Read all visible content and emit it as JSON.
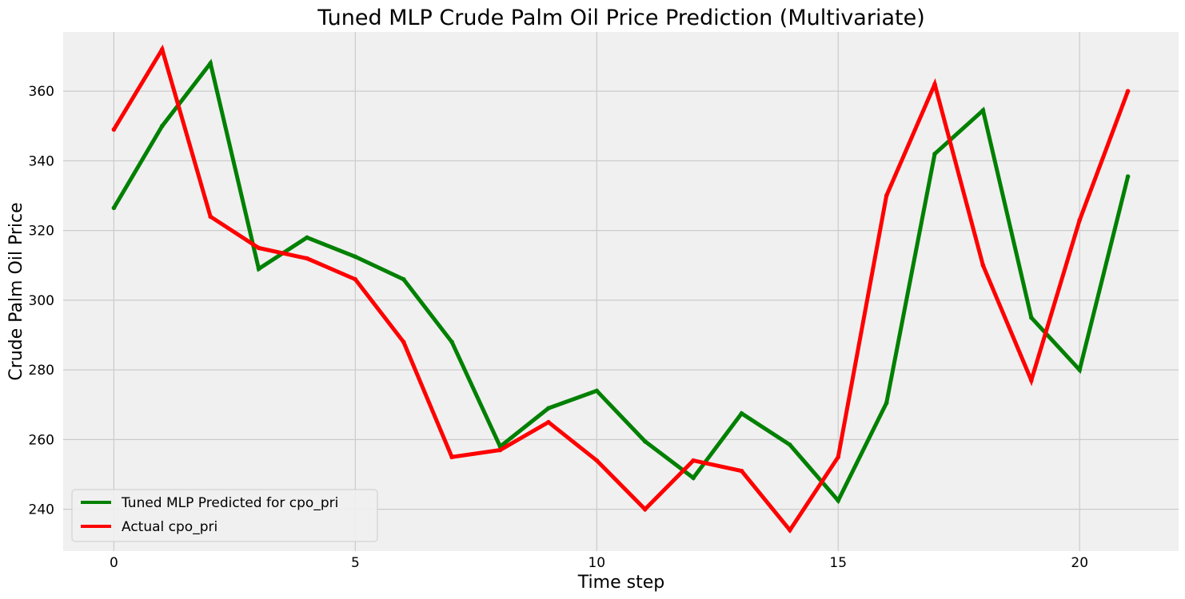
{
  "chart_data": {
    "type": "line",
    "title": "Tuned MLP Crude Palm Oil Price Prediction (Multivariate)",
    "xlabel": "Time step",
    "ylabel": "Crude Palm Oil Price",
    "xlim": [
      -1.05,
      22.05
    ],
    "ylim": [
      228,
      377
    ],
    "xticks": [
      0,
      5,
      10,
      15,
      20
    ],
    "yticks": [
      240,
      260,
      280,
      300,
      320,
      340,
      360
    ],
    "grid": true,
    "legend_position": "lower-left",
    "x": [
      0,
      1,
      2,
      3,
      4,
      5,
      6,
      7,
      8,
      9,
      10,
      11,
      12,
      13,
      14,
      15,
      16,
      17,
      18,
      19,
      20,
      21
    ],
    "series": [
      {
        "name": "Tuned MLP Predicted for cpo_pri",
        "color": "#008000",
        "values": [
          326.5,
          350,
          368,
          309,
          318,
          312.5,
          306,
          288,
          258,
          269,
          274,
          259.5,
          249,
          267.5,
          258.5,
          242.5,
          270.5,
          342,
          354.5,
          295,
          280,
          335.5
        ]
      },
      {
        "name": "Actual cpo_pri",
        "color": "#ff0000",
        "values": [
          349,
          372,
          324,
          315,
          312,
          306,
          288,
          255,
          257,
          265,
          254,
          240,
          254,
          251,
          234,
          255,
          330,
          362,
          310,
          277,
          323,
          360
        ]
      }
    ]
  }
}
